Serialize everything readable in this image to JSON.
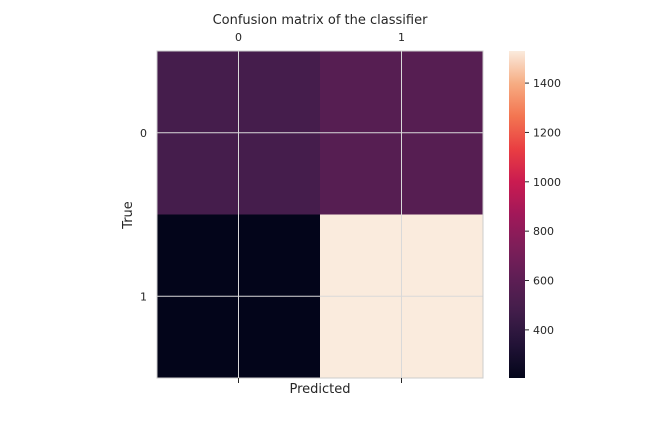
{
  "chart_data": {
    "type": "heatmap",
    "title": "Confusion matrix of the classifier",
    "xlabel": "Predicted",
    "ylabel": "True",
    "x_categories": [
      "0",
      "1"
    ],
    "y_categories": [
      "0",
      "1"
    ],
    "values": [
      [
        490,
        570
      ],
      [
        205,
        1530
      ]
    ],
    "color_range": [
      205,
      1530
    ],
    "colormap": "rocket",
    "colorbar_ticks": [
      "400",
      "600",
      "800",
      "1000",
      "1200",
      "1400"
    ],
    "colorbar_tick_values": [
      400,
      600,
      800,
      1000,
      1200,
      1400
    ],
    "grid": true,
    "x_tick_position": "top"
  }
}
